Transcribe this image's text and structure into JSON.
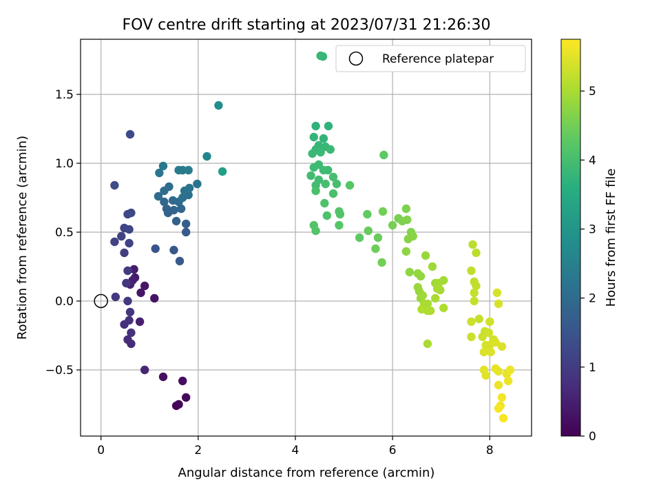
{
  "chart_data": {
    "type": "scatter",
    "title": "FOV centre drift starting at 2023/07/31 21:26:30",
    "xlabel": "Angular distance from reference (arcmin)",
    "ylabel": "Rotation from reference (arcmin)",
    "xlim": [
      -0.42,
      8.86
    ],
    "ylim": [
      -0.98,
      1.9
    ],
    "xticks": [
      "0",
      "2",
      "4",
      "6",
      "8"
    ],
    "yticks": [
      "−0.5",
      "0.0",
      "0.5",
      "1.0",
      "1.5"
    ],
    "grid": true,
    "legend": {
      "placement": "top-right",
      "entries": [
        "",
        "Reference platepar"
      ]
    },
    "colorbar": {
      "label": "Hours from first FF file",
      "range": [
        0,
        5.75
      ],
      "ticks": [
        "0",
        "1",
        "2",
        "3",
        "4",
        "5"
      ],
      "colormap": "viridis"
    },
    "reference_point": {
      "x": 0,
      "y": 0
    },
    "series": [
      {
        "points": [
          [
            1.55,
            -0.76,
            0.1
          ],
          [
            1.6,
            -0.75,
            0.1
          ],
          [
            1.75,
            -0.7,
            0.15
          ],
          [
            1.68,
            -0.58,
            0.2
          ],
          [
            1.28,
            -0.55,
            0.25
          ],
          [
            1.1,
            0.02,
            0.3
          ],
          [
            0.82,
            0.06,
            0.35
          ],
          [
            0.9,
            0.11,
            0.35
          ],
          [
            0.7,
            0.17,
            0.4
          ],
          [
            0.68,
            0.23,
            0.45
          ],
          [
            0.65,
            0.15,
            0.5
          ],
          [
            0.6,
            0.12,
            0.55
          ],
          [
            0.8,
            -0.15,
            0.5
          ],
          [
            0.9,
            -0.5,
            0.6
          ],
          [
            0.62,
            -0.31,
            0.7
          ],
          [
            0.55,
            -0.28,
            0.7
          ],
          [
            0.48,
            -0.17,
            0.75
          ],
          [
            0.58,
            -0.14,
            0.8
          ],
          [
            0.62,
            -0.23,
            0.8
          ],
          [
            0.6,
            -0.08,
            0.9
          ],
          [
            0.52,
            0.13,
            0.9
          ],
          [
            0.55,
            0.0,
            0.95
          ],
          [
            0.3,
            0.03,
            0.9
          ],
          [
            0.55,
            0.22,
            1.0
          ],
          [
            0.48,
            0.35,
            1.05
          ],
          [
            0.28,
            0.43,
            1.1
          ],
          [
            0.42,
            0.47,
            1.1
          ],
          [
            0.58,
            0.42,
            1.15
          ],
          [
            0.48,
            0.53,
            1.15
          ],
          [
            0.58,
            0.52,
            1.2
          ],
          [
            0.55,
            0.63,
            1.2
          ],
          [
            0.62,
            0.64,
            1.25
          ],
          [
            0.28,
            0.84,
            1.3
          ],
          [
            0.6,
            1.21,
            1.3
          ],
          [
            1.12,
            0.38,
            1.5
          ],
          [
            1.5,
            0.37,
            1.55
          ],
          [
            1.62,
            0.29,
            1.6
          ],
          [
            1.75,
            0.5,
            1.6
          ],
          [
            1.75,
            0.56,
            1.7
          ],
          [
            1.55,
            0.58,
            1.75
          ],
          [
            1.38,
            0.64,
            1.8
          ],
          [
            1.35,
            0.67,
            1.8
          ],
          [
            1.5,
            0.66,
            1.85
          ],
          [
            1.65,
            0.67,
            1.9
          ],
          [
            1.3,
            0.72,
            1.9
          ],
          [
            1.48,
            0.73,
            1.95
          ],
          [
            1.6,
            0.72,
            2.0
          ],
          [
            1.18,
            0.76,
            2.0
          ],
          [
            1.3,
            0.8,
            2.05
          ],
          [
            1.4,
            0.83,
            2.05
          ],
          [
            1.68,
            0.75,
            2.1
          ],
          [
            1.8,
            0.77,
            2.1
          ],
          [
            1.72,
            0.8,
            2.15
          ],
          [
            1.82,
            0.82,
            2.2
          ],
          [
            1.98,
            0.85,
            2.2
          ],
          [
            1.2,
            0.93,
            2.25
          ],
          [
            1.28,
            0.98,
            2.3
          ],
          [
            1.6,
            0.95,
            2.35
          ],
          [
            1.68,
            0.95,
            2.35
          ],
          [
            1.8,
            0.95,
            2.4
          ],
          [
            2.18,
            1.05,
            2.6
          ],
          [
            2.42,
            1.42,
            2.8
          ],
          [
            2.5,
            0.94,
            3.2
          ],
          [
            4.52,
            1.78,
            3.8
          ],
          [
            4.42,
            1.27,
            3.7
          ],
          [
            4.68,
            1.27,
            3.7
          ],
          [
            4.58,
            1.18,
            3.75
          ],
          [
            4.38,
            1.19,
            3.75
          ],
          [
            4.48,
            1.13,
            3.8
          ],
          [
            4.42,
            1.1,
            3.8
          ],
          [
            4.62,
            1.12,
            3.8
          ],
          [
            4.72,
            1.1,
            3.85
          ],
          [
            4.35,
            1.07,
            3.85
          ],
          [
            4.52,
            1.08,
            3.85
          ],
          [
            4.38,
            0.97,
            3.9
          ],
          [
            4.48,
            0.99,
            3.9
          ],
          [
            4.58,
            0.95,
            3.9
          ],
          [
            4.67,
            0.95,
            3.9
          ],
          [
            4.32,
            0.91,
            3.95
          ],
          [
            4.48,
            0.88,
            3.95
          ],
          [
            4.42,
            0.84,
            3.95
          ],
          [
            4.62,
            0.85,
            4.0
          ],
          [
            4.78,
            0.9,
            4.0
          ],
          [
            4.85,
            0.85,
            4.0
          ],
          [
            4.78,
            0.78,
            4.05
          ],
          [
            4.42,
            0.8,
            4.05
          ],
          [
            4.6,
            0.71,
            4.1
          ],
          [
            4.65,
            0.62,
            4.1
          ],
          [
            4.9,
            0.65,
            4.15
          ],
          [
            4.92,
            0.63,
            4.15
          ],
          [
            4.9,
            0.55,
            4.2
          ],
          [
            4.38,
            0.55,
            4.15
          ],
          [
            4.42,
            0.51,
            4.15
          ],
          [
            5.12,
            0.84,
            4.2
          ],
          [
            5.82,
            1.06,
            4.3
          ],
          [
            5.32,
            0.46,
            4.3
          ],
          [
            5.48,
            0.63,
            4.35
          ],
          [
            5.5,
            0.51,
            4.4
          ],
          [
            5.7,
            0.46,
            4.4
          ],
          [
            5.65,
            0.38,
            4.45
          ],
          [
            5.78,
            0.28,
            4.5
          ],
          [
            5.8,
            0.65,
            4.5
          ],
          [
            6.0,
            0.55,
            4.55
          ],
          [
            6.12,
            0.6,
            4.55
          ],
          [
            6.2,
            0.58,
            4.6
          ],
          [
            6.28,
            0.67,
            4.6
          ],
          [
            6.3,
            0.59,
            4.65
          ],
          [
            6.38,
            0.5,
            4.65
          ],
          [
            6.42,
            0.47,
            4.7
          ],
          [
            6.32,
            0.45,
            4.7
          ],
          [
            6.28,
            0.36,
            4.75
          ],
          [
            6.35,
            0.21,
            4.75
          ],
          [
            6.52,
            0.2,
            4.8
          ],
          [
            6.58,
            0.18,
            4.8
          ],
          [
            6.52,
            0.1,
            4.85
          ],
          [
            6.55,
            0.07,
            4.85
          ],
          [
            6.58,
            0.02,
            4.85
          ],
          [
            6.62,
            0.04,
            4.9
          ],
          [
            6.68,
            0.33,
            4.85
          ],
          [
            6.82,
            0.25,
            4.9
          ],
          [
            6.88,
            0.13,
            4.9
          ],
          [
            6.95,
            0.13,
            4.95
          ],
          [
            6.98,
            0.08,
            4.95
          ],
          [
            7.05,
            0.15,
            4.95
          ],
          [
            6.92,
            0.09,
            5.0
          ],
          [
            6.72,
            -0.02,
            5.0
          ],
          [
            6.88,
            0.02,
            5.0
          ],
          [
            6.65,
            -0.02,
            5.0
          ],
          [
            6.6,
            -0.06,
            5.05
          ],
          [
            6.72,
            -0.07,
            5.05
          ],
          [
            6.78,
            -0.07,
            5.05
          ],
          [
            7.05,
            -0.05,
            5.05
          ],
          [
            6.72,
            -0.31,
            5.0
          ],
          [
            7.65,
            0.41,
            5.15
          ],
          [
            7.72,
            0.35,
            5.15
          ],
          [
            7.62,
            0.22,
            5.2
          ],
          [
            7.68,
            0.14,
            5.2
          ],
          [
            7.72,
            0.11,
            5.2
          ],
          [
            7.68,
            0.06,
            5.25
          ],
          [
            7.68,
            0.0,
            5.25
          ],
          [
            7.78,
            -0.13,
            5.25
          ],
          [
            7.62,
            -0.15,
            5.3
          ],
          [
            7.62,
            -0.26,
            5.3
          ],
          [
            7.85,
            -0.26,
            5.3
          ],
          [
            7.9,
            -0.22,
            5.3
          ],
          [
            7.98,
            -0.23,
            5.35
          ],
          [
            8.0,
            -0.15,
            5.35
          ],
          [
            8.08,
            -0.28,
            5.35
          ],
          [
            7.92,
            -0.32,
            5.4
          ],
          [
            8.0,
            -0.32,
            5.4
          ],
          [
            7.88,
            -0.37,
            5.45
          ],
          [
            8.02,
            -0.37,
            5.45
          ],
          [
            8.12,
            -0.3,
            5.45
          ],
          [
            8.25,
            -0.33,
            5.45
          ],
          [
            8.15,
            0.06,
            5.4
          ],
          [
            8.18,
            -0.02,
            5.4
          ],
          [
            7.88,
            -0.5,
            5.5
          ],
          [
            7.92,
            -0.54,
            5.5
          ],
          [
            8.12,
            -0.49,
            5.55
          ],
          [
            8.18,
            -0.51,
            5.55
          ],
          [
            8.35,
            -0.53,
            5.55
          ],
          [
            8.42,
            -0.5,
            5.6
          ],
          [
            8.38,
            -0.58,
            5.6
          ],
          [
            8.18,
            -0.61,
            5.6
          ],
          [
            8.25,
            -0.7,
            5.65
          ],
          [
            8.22,
            -0.76,
            5.65
          ],
          [
            8.18,
            -0.78,
            5.7
          ],
          [
            8.28,
            -0.85,
            5.7
          ]
        ]
      }
    ]
  }
}
